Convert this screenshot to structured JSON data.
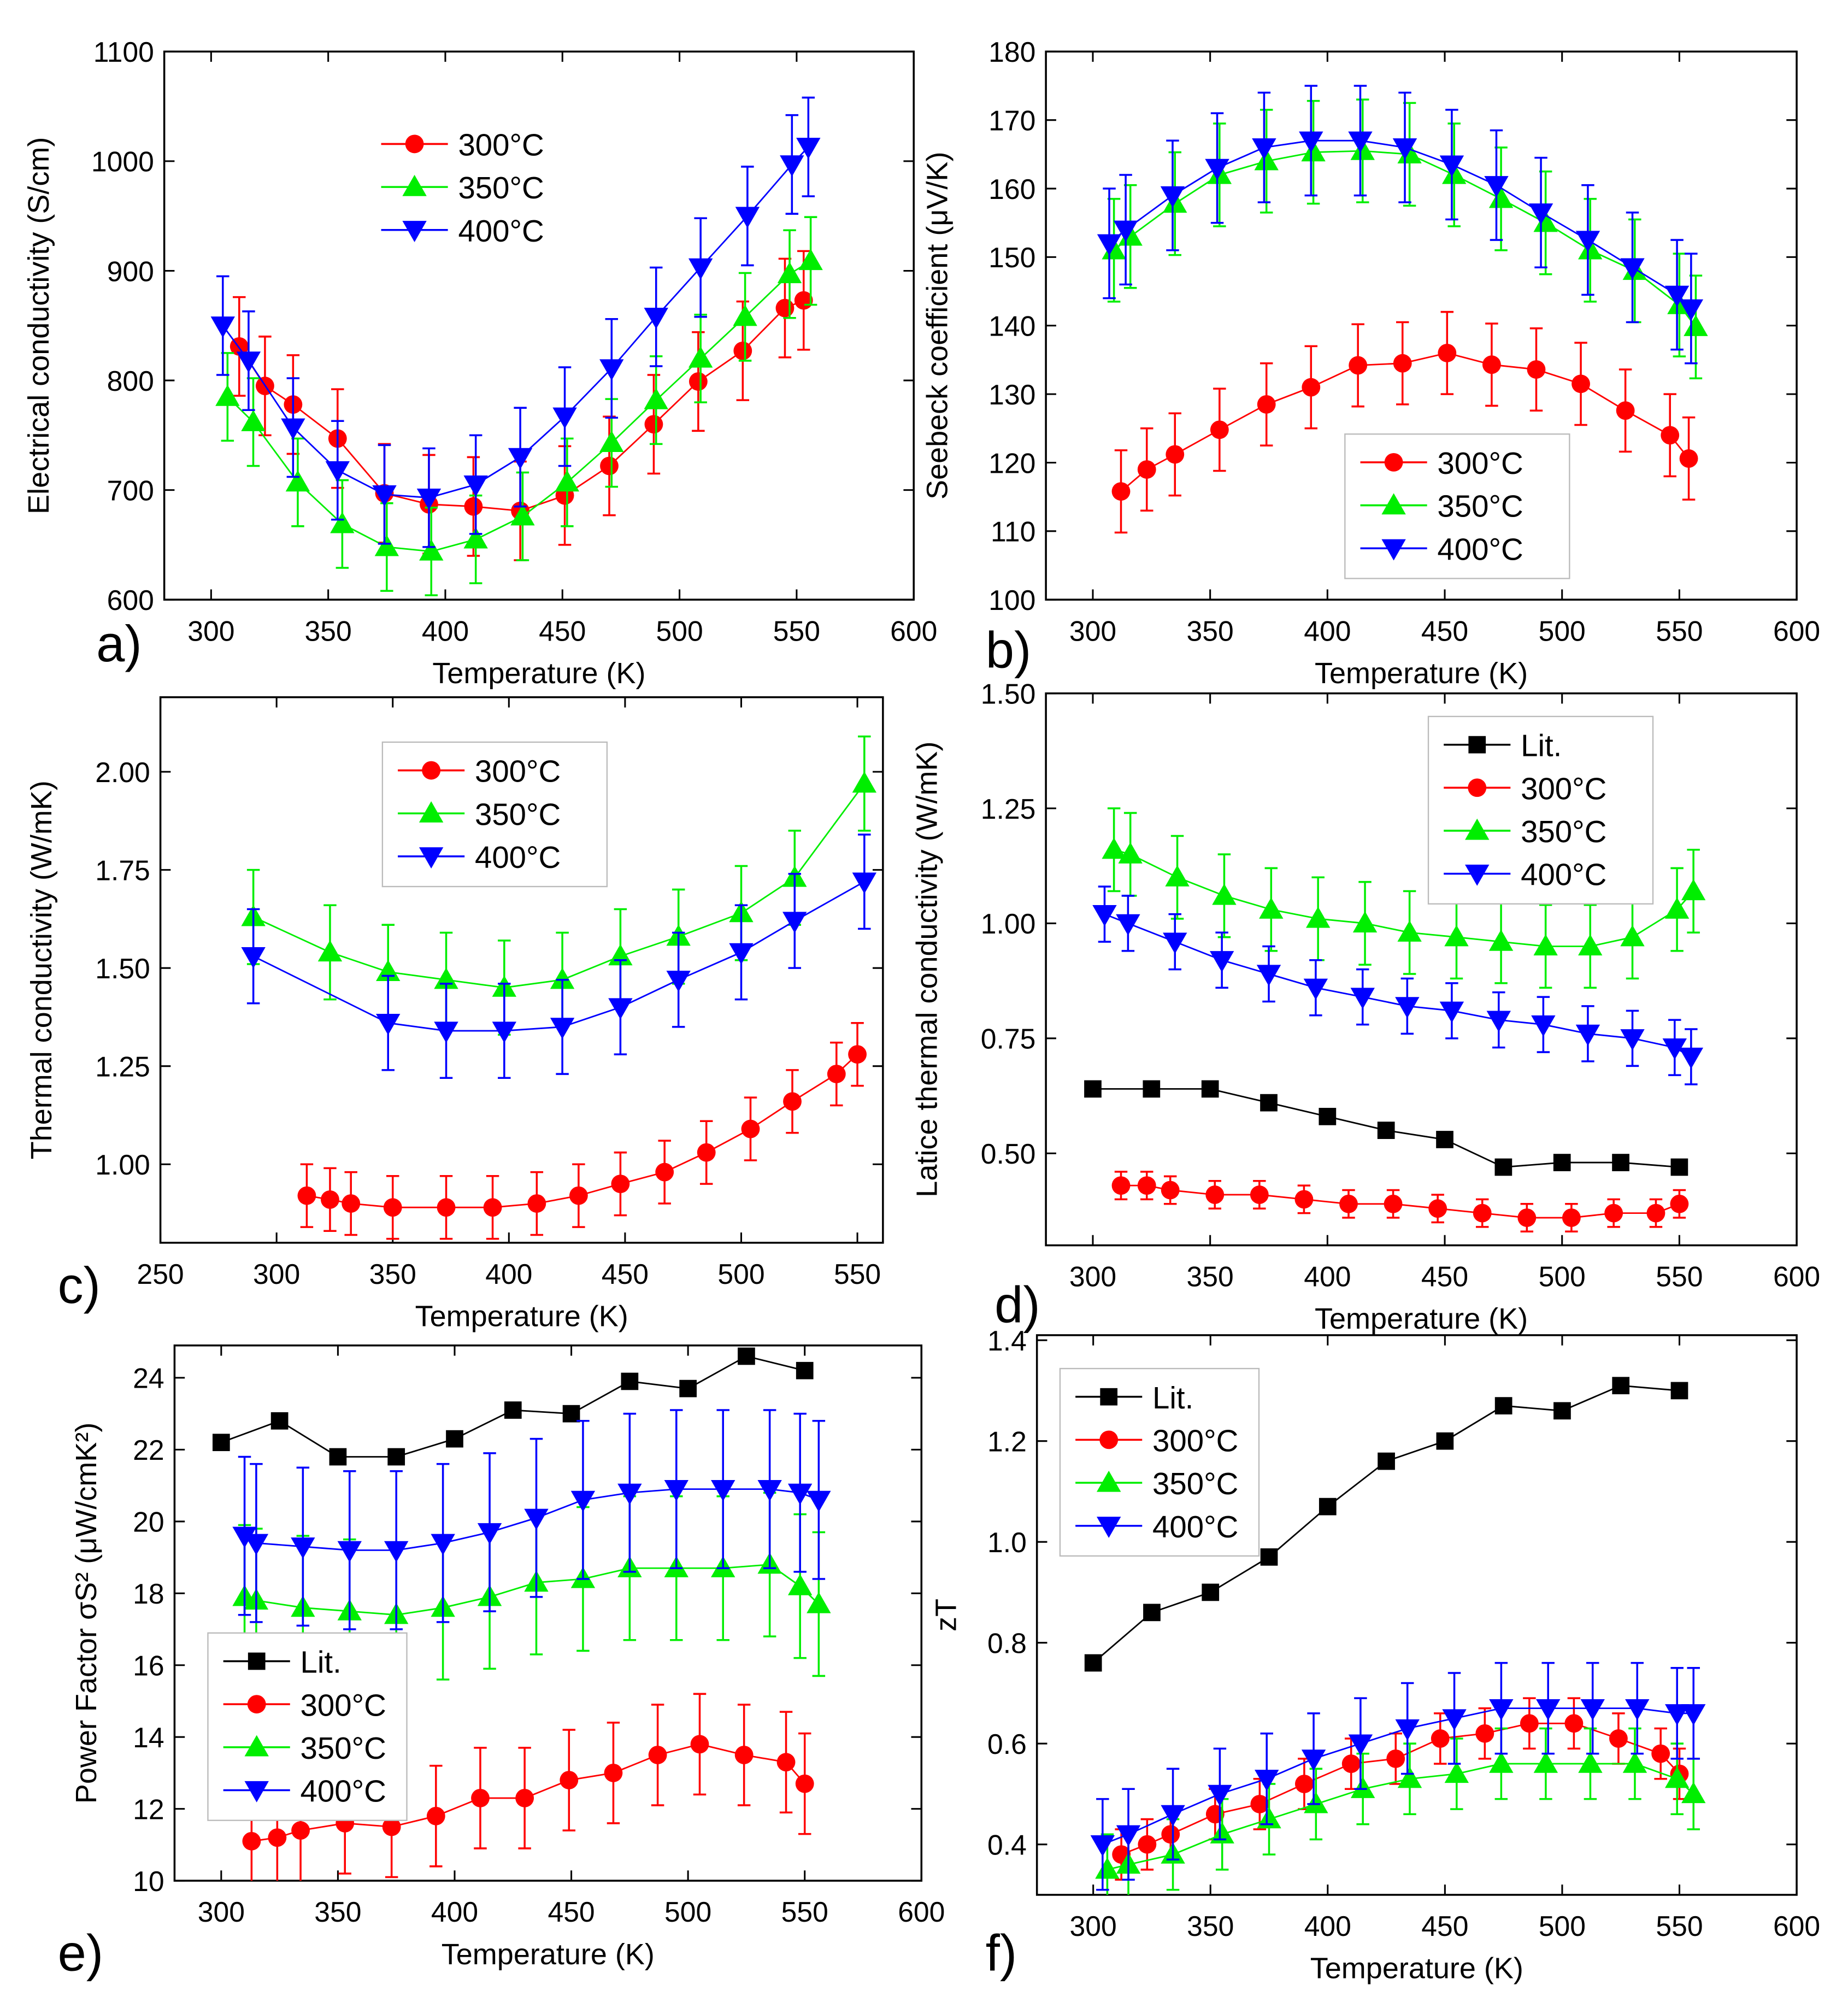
{
  "colors": {
    "300C": "#ff0000",
    "350C": "#00ee00",
    "400C": "#0000ff",
    "Lit": "#000000"
  },
  "chart_data": [
    {
      "panel_label": "a)",
      "type": "scatter",
      "xlabel": "Temperature (K)",
      "ylabel": "Electrical conductivity (S/cm)",
      "xlim": [
        280,
        600
      ],
      "ylim": [
        600,
        1100
      ],
      "x_ticks": [
        "300",
        "350",
        "400",
        "450",
        "500",
        "550",
        "600"
      ],
      "y_ticks": [
        "600",
        "700",
        "800",
        "900",
        "1000",
        "1100"
      ],
      "legend": "top-center",
      "legend_box": false,
      "series": [
        {
          "name": "300°C",
          "marker": "circle",
          "color": "#ff0000",
          "err": 45,
          "x": [
            312,
            323,
            335,
            354,
            374,
            393,
            412,
            432,
            451,
            470,
            489,
            508,
            527,
            545,
            553
          ],
          "y": [
            831,
            795,
            778,
            747,
            697,
            687,
            685,
            681,
            695,
            722,
            760,
            799,
            827,
            866,
            873
          ]
        },
        {
          "name": "350°C",
          "marker": "triangle-up",
          "color": "#00ee00",
          "err": 40,
          "x": [
            307,
            318,
            337,
            356,
            375,
            394,
            413,
            433,
            452,
            471,
            490,
            509,
            528,
            547,
            556
          ],
          "y": [
            785,
            762,
            707,
            669,
            648,
            644,
            655,
            676,
            707,
            743,
            782,
            820,
            858,
            897,
            909
          ]
        },
        {
          "name": "400°C",
          "marker": "triangle-down",
          "color": "#0000ff",
          "err": 45,
          "x": [
            305,
            316,
            335,
            354,
            374,
            393,
            413,
            432,
            451,
            471,
            490,
            509,
            529,
            548,
            555
          ],
          "y": [
            850,
            818,
            757,
            718,
            696,
            693,
            705,
            730,
            767,
            811,
            858,
            903,
            950,
            997,
            1013
          ]
        }
      ]
    },
    {
      "panel_label": "b)",
      "type": "scatter",
      "xlabel": "Temperature (K)",
      "ylabel": "Seebeck coefficient (μV/K)",
      "xlim": [
        280,
        600
      ],
      "ylim": [
        100,
        180
      ],
      "x_ticks": [
        "300",
        "350",
        "400",
        "450",
        "500",
        "550",
        "600"
      ],
      "y_ticks": [
        "100",
        "110",
        "120",
        "130",
        "140",
        "150",
        "160",
        "170",
        "180"
      ],
      "legend": "bottom-center",
      "legend_box": true,
      "series": [
        {
          "name": "300°C",
          "marker": "circle",
          "color": "#ff0000",
          "err": 6,
          "x": [
            312,
            323,
            335,
            354,
            374,
            393,
            413,
            432,
            451,
            470,
            489,
            508,
            527,
            546,
            554
          ],
          "y": [
            115.8,
            119,
            121.2,
            124.8,
            128.5,
            131,
            134.2,
            134.5,
            136,
            134.3,
            133.6,
            131.5,
            127.6,
            124,
            120.6
          ]
        },
        {
          "name": "350°C",
          "marker": "triangle-up",
          "color": "#00ee00",
          "err": 7.5,
          "x": [
            309,
            316,
            335,
            354,
            374,
            394,
            415,
            435,
            454,
            474,
            493,
            512,
            531,
            550,
            557
          ],
          "y": [
            151,
            153,
            157.8,
            162,
            164,
            165.3,
            165.5,
            165,
            162,
            158.5,
            155,
            151,
            148,
            143,
            139.8
          ]
        },
        {
          "name": "400°C",
          "marker": "triangle-down",
          "color": "#0000ff",
          "err": 8,
          "x": [
            307,
            314,
            334,
            353,
            373,
            393,
            414,
            433,
            453,
            472,
            491,
            511,
            530,
            549,
            555
          ],
          "y": [
            152,
            154,
            159,
            163,
            166,
            167,
            167,
            166,
            163.5,
            160.5,
            156.5,
            152.5,
            148.5,
            144.5,
            142.5
          ]
        }
      ]
    },
    {
      "panel_label": "c)",
      "type": "scatter",
      "xlabel": "Temperature (K)",
      "ylabel": "Thermal conductivity (W/mK)",
      "xlim": [
        250,
        561
      ],
      "ylim": [
        0.8,
        2.19
      ],
      "x_ticks": [
        "250",
        "300",
        "350",
        "400",
        "450",
        "500",
        "550"
      ],
      "y_ticks": [
        "1.00",
        "1.25",
        "1.50",
        "1.75",
        "2.00"
      ],
      "legend": "top-center",
      "legend_box": true,
      "series": [
        {
          "name": "300°C",
          "marker": "circle",
          "color": "#ff0000",
          "err": 0.08,
          "x": [
            313,
            323,
            332,
            350,
            373,
            393,
            412,
            430,
            448,
            467,
            485,
            504,
            522,
            541,
            550
          ],
          "y": [
            0.92,
            0.91,
            0.9,
            0.89,
            0.89,
            0.89,
            0.9,
            0.92,
            0.95,
            0.98,
            1.03,
            1.09,
            1.16,
            1.23,
            1.28
          ]
        },
        {
          "name": "350°C",
          "marker": "triangle-up",
          "color": "#00ee00",
          "err": 0.12,
          "x": [
            290,
            323,
            348,
            373,
            398,
            423,
            448,
            473,
            500,
            523,
            553
          ],
          "y": [
            1.63,
            1.54,
            1.49,
            1.47,
            1.45,
            1.47,
            1.53,
            1.58,
            1.64,
            1.73,
            1.97
          ]
        },
        {
          "name": "400°C",
          "marker": "triangle-down",
          "color": "#0000ff",
          "err": 0.12,
          "x": [
            290,
            348,
            373,
            398,
            423,
            448,
            473,
            500,
            523,
            553
          ],
          "y": [
            1.53,
            1.36,
            1.34,
            1.34,
            1.35,
            1.4,
            1.47,
            1.54,
            1.62,
            1.72
          ]
        }
      ]
    },
    {
      "panel_label": "d)",
      "type": "scatter",
      "xlabel": "Temperature (K)",
      "ylabel": "Latice thermal conductivity (W/mK)",
      "xlim": [
        280,
        600
      ],
      "ylim": [
        0.3,
        1.5
      ],
      "x_ticks": [
        "300",
        "350",
        "400",
        "450",
        "500",
        "550",
        "600"
      ],
      "y_ticks": [
        "0.50",
        "0.75",
        "1.00",
        "1.25",
        "1.50"
      ],
      "legend": "top-right",
      "legend_box": true,
      "series": [
        {
          "name": "Lit.",
          "marker": "square",
          "color": "#000000",
          "err": 0,
          "x": [
            300,
            325,
            350,
            375,
            400,
            425,
            450,
            475,
            500,
            525,
            550
          ],
          "y": [
            0.64,
            0.64,
            0.64,
            0.61,
            0.58,
            0.55,
            0.53,
            0.47,
            0.48,
            0.48,
            0.47
          ]
        },
        {
          "name": "300°C",
          "marker": "circle",
          "color": "#ff0000",
          "err": 0.03,
          "x": [
            312,
            323,
            333,
            352,
            371,
            390,
            409,
            428,
            447,
            466,
            485,
            504,
            522,
            540,
            550
          ],
          "y": [
            0.43,
            0.43,
            0.42,
            0.41,
            0.41,
            0.4,
            0.39,
            0.39,
            0.38,
            0.37,
            0.36,
            0.36,
            0.37,
            0.37,
            0.39
          ]
        },
        {
          "name": "350°C",
          "marker": "triangle-up",
          "color": "#00ee00",
          "err": 0.09,
          "x": [
            309,
            316,
            336,
            356,
            376,
            396,
            416,
            435,
            455,
            474,
            493,
            512,
            530,
            549,
            556
          ],
          "y": [
            1.16,
            1.15,
            1.1,
            1.06,
            1.03,
            1.01,
            1.0,
            0.98,
            0.97,
            0.96,
            0.95,
            0.95,
            0.97,
            1.03,
            1.07
          ]
        },
        {
          "name": "400°C",
          "marker": "triangle-down",
          "color": "#0000ff",
          "err": 0.06,
          "x": [
            305,
            315,
            335,
            355,
            375,
            395,
            415,
            434,
            453,
            473,
            492,
            511,
            530,
            548,
            555
          ],
          "y": [
            1.02,
            1.0,
            0.96,
            0.92,
            0.89,
            0.86,
            0.84,
            0.82,
            0.81,
            0.79,
            0.78,
            0.76,
            0.75,
            0.73,
            0.71
          ]
        }
      ]
    },
    {
      "panel_label": "e)",
      "type": "scatter",
      "xlabel": "Temperature (K)",
      "ylabel": "Power Factor σS² (μW/cmK²)",
      "xlim": [
        280,
        600
      ],
      "ylim": [
        10,
        24.9
      ],
      "x_ticks": [
        "300",
        "350",
        "400",
        "450",
        "500",
        "550",
        "600"
      ],
      "y_ticks": [
        "10",
        "12",
        "14",
        "16",
        "18",
        "20",
        "22",
        "24"
      ],
      "legend": "bottom-left",
      "legend_box": true,
      "series": [
        {
          "name": "Lit.",
          "marker": "square",
          "color": "#000000",
          "err": 0,
          "x": [
            300,
            325,
            350,
            375,
            400,
            425,
            450,
            475,
            500,
            525,
            550
          ],
          "y": [
            22.2,
            22.8,
            21.8,
            21.8,
            22.3,
            23.1,
            23.0,
            23.9,
            23.7,
            24.6,
            24.2
          ]
        },
        {
          "name": "300°C",
          "marker": "circle",
          "color": "#ff0000",
          "err": 1.4,
          "x": [
            313,
            324,
            334,
            353,
            373,
            392,
            411,
            430,
            449,
            468,
            487,
            505,
            524,
            542,
            550
          ],
          "y": [
            11.1,
            11.2,
            11.4,
            11.6,
            11.5,
            11.8,
            12.3,
            12.3,
            12.8,
            13.0,
            13.5,
            13.8,
            13.5,
            13.3,
            12.7
          ]
        },
        {
          "name": "350°C",
          "marker": "triangle-up",
          "color": "#00ee00",
          "err": 2.0,
          "x": [
            310,
            315,
            335,
            355,
            375,
            395,
            415,
            435,
            455,
            475,
            495,
            515,
            535,
            548,
            556
          ],
          "y": [
            17.9,
            17.8,
            17.6,
            17.5,
            17.4,
            17.6,
            17.9,
            18.3,
            18.4,
            18.7,
            18.7,
            18.7,
            18.8,
            18.2,
            17.7
          ]
        },
        {
          "name": "400°C",
          "marker": "triangle-down",
          "color": "#0000ff",
          "err": 2.2,
          "x": [
            310,
            315,
            335,
            355,
            375,
            395,
            415,
            435,
            455,
            475,
            495,
            515,
            535,
            548,
            556
          ],
          "y": [
            19.6,
            19.4,
            19.3,
            19.2,
            19.2,
            19.4,
            19.7,
            20.1,
            20.6,
            20.8,
            20.9,
            20.9,
            20.9,
            20.8,
            20.6
          ]
        }
      ]
    },
    {
      "panel_label": "f)",
      "type": "scatter",
      "xlabel": "Temperature (K)",
      "ylabel": "zT",
      "xlim": [
        276,
        600
      ],
      "ylim": [
        0.3,
        1.41
      ],
      "x_ticks": [
        "300",
        "350",
        "400",
        "450",
        "500",
        "550",
        "600"
      ],
      "y_ticks": [
        "0.4",
        "0.6",
        "0.8",
        "1.0",
        "1.2",
        "1.4"
      ],
      "legend": "top-left",
      "legend_box": true,
      "series": [
        {
          "name": "Lit.",
          "marker": "square",
          "color": "#000000",
          "err": 0,
          "x": [
            300,
            325,
            350,
            375,
            400,
            425,
            450,
            475,
            500,
            525,
            550
          ],
          "y": [
            0.76,
            0.86,
            0.9,
            0.97,
            1.07,
            1.16,
            1.2,
            1.27,
            1.26,
            1.31,
            1.3
          ]
        },
        {
          "name": "300°C",
          "marker": "circle",
          "color": "#ff0000",
          "err": 0.05,
          "x": [
            312,
            323,
            333,
            352,
            371,
            390,
            410,
            429,
            448,
            467,
            486,
            505,
            524,
            542,
            550
          ],
          "y": [
            0.38,
            0.4,
            0.42,
            0.46,
            0.48,
            0.52,
            0.56,
            0.57,
            0.61,
            0.62,
            0.64,
            0.64,
            0.61,
            0.58,
            0.54
          ]
        },
        {
          "name": "350°C",
          "marker": "triangle-up",
          "color": "#00ee00",
          "err": 0.07,
          "x": [
            306,
            315,
            334,
            355,
            375,
            395,
            415,
            435,
            455,
            474,
            493,
            512,
            531,
            549,
            556
          ],
          "y": [
            0.35,
            0.36,
            0.38,
            0.42,
            0.45,
            0.48,
            0.51,
            0.53,
            0.54,
            0.56,
            0.56,
            0.56,
            0.56,
            0.53,
            0.5
          ]
        },
        {
          "name": "400°C",
          "marker": "triangle-down",
          "color": "#0000ff",
          "err": 0.09,
          "x": [
            304,
            315,
            334,
            354,
            374,
            394,
            414,
            434,
            454,
            474,
            494,
            513,
            532,
            549,
            556
          ],
          "y": [
            0.4,
            0.42,
            0.46,
            0.5,
            0.53,
            0.57,
            0.6,
            0.63,
            0.65,
            0.67,
            0.67,
            0.67,
            0.67,
            0.66,
            0.66
          ]
        }
      ]
    }
  ]
}
